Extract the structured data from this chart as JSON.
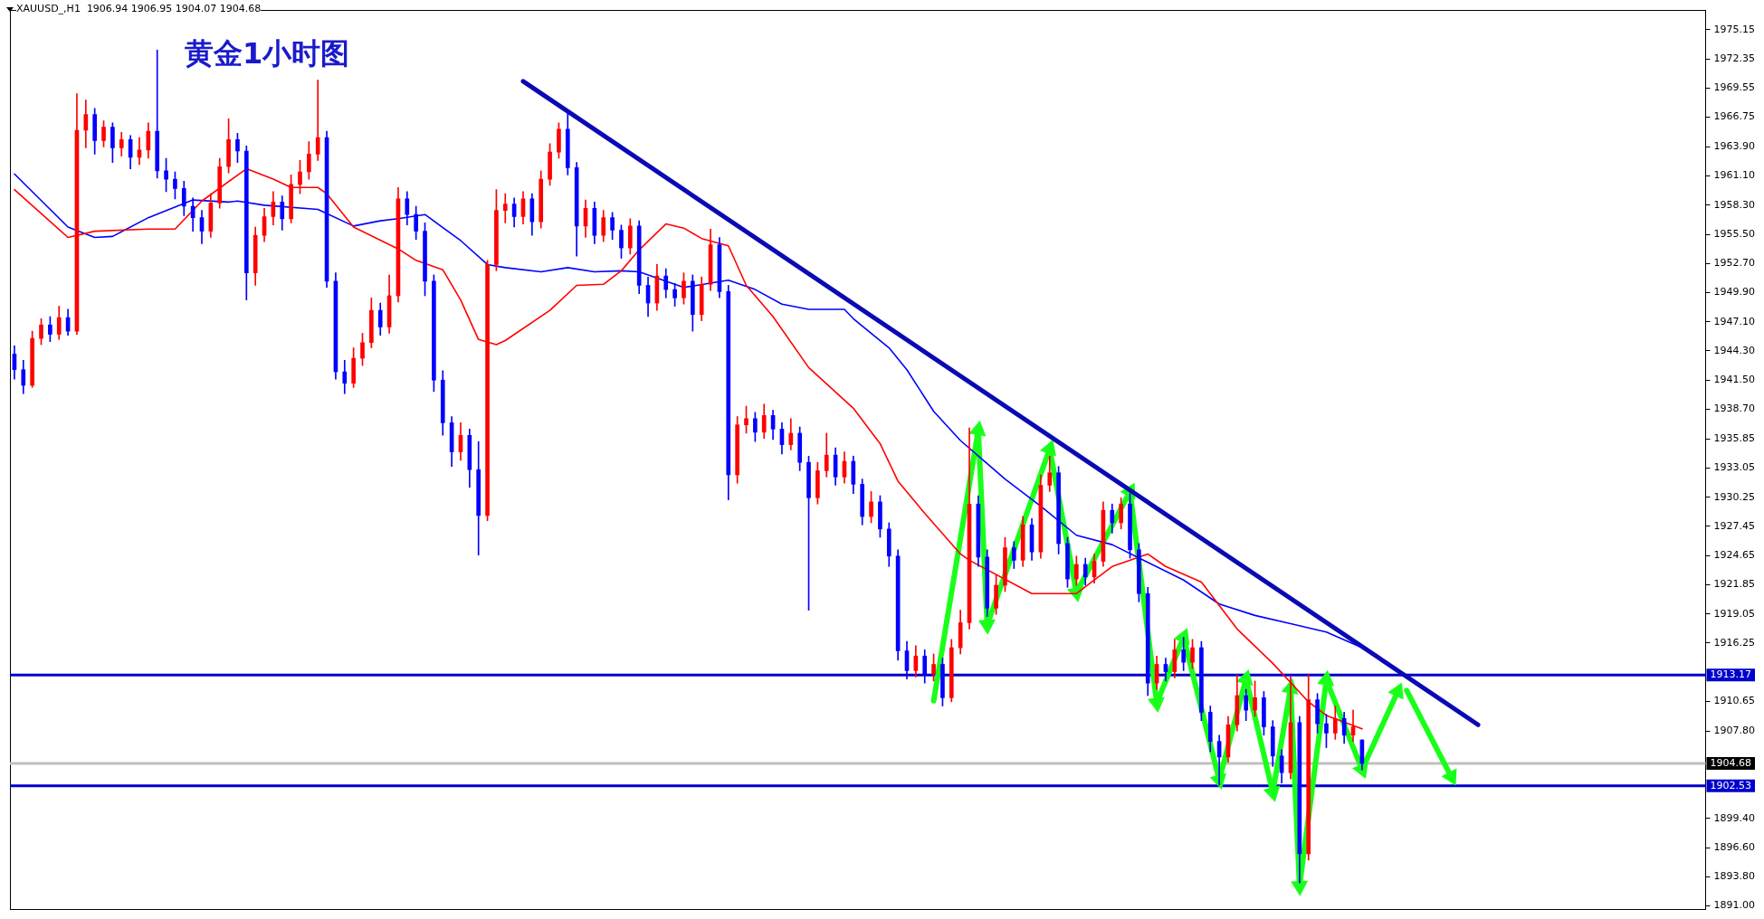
{
  "chart_data": {
    "type": "candlestick",
    "title": "黄金1小时图",
    "annotations": [
      "XAUUSD_,H1  1906.94 1906.95 1904.07 1904.68"
    ],
    "categories": [
      null,
      null,
      null,
      null,
      null,
      null,
      null,
      null,
      null,
      null,
      null,
      null,
      null,
      null,
      null,
      null,
      null,
      null,
      null,
      null,
      null,
      null,
      null,
      null,
      null,
      null,
      null,
      null,
      null,
      null,
      null,
      null,
      null,
      null,
      null,
      null,
      null,
      null,
      null,
      null,
      null,
      null,
      null,
      null,
      null,
      null,
      null,
      null,
      null,
      null,
      null,
      null,
      null,
      null,
      null,
      null,
      null,
      null,
      null,
      null,
      null,
      null,
      null,
      null,
      null,
      null,
      null,
      null,
      null,
      null,
      null,
      null,
      null,
      null,
      null,
      null,
      null,
      null,
      null,
      null,
      null,
      null,
      null,
      null,
      null,
      null,
      null,
      null,
      null,
      null,
      null,
      null,
      null,
      null,
      null,
      null,
      null,
      null,
      null,
      null,
      null,
      null,
      null,
      null,
      null,
      null,
      null,
      null,
      null,
      null,
      null,
      null,
      null,
      null,
      null,
      null,
      null,
      null,
      null,
      null,
      null,
      null,
      null,
      null,
      null,
      null,
      null,
      null,
      null,
      null,
      null,
      null,
      null,
      null,
      null,
      null,
      null,
      null,
      null,
      null,
      null,
      null,
      null,
      null,
      null,
      null,
      null,
      null,
      null,
      null,
      null,
      null,
      null,
      null,
      null,
      null,
      null,
      null,
      null,
      null,
      null,
      null,
      null,
      null,
      null,
      null,
      null,
      null,
      null,
      null,
      null,
      null,
      null,
      null,
      null,
      null,
      null,
      null,
      null,
      null,
      null,
      null,
      null,
      null,
      null,
      null,
      null,
      null,
      null,
      null
    ],
    "ylim": [
      1890.7,
      1977.05
    ],
    "tick_labels": "y",
    "yticks": [
      1975.15,
      1972.35,
      1969.55,
      1966.75,
      {
        "value": 1963.9,
        "label": "1963.90"
      },
      {
        "value": 1961.1,
        "label": "1961.10"
      },
      {
        "value": 1958.3,
        "label": "1958.30"
      },
      {
        "value": 1955.5,
        "label": "1955.50"
      },
      {
        "value": 1952.7,
        "label": "1952.70"
      },
      {
        "value": 1949.9,
        "label": "1949.90"
      },
      {
        "value": 1947.1,
        "label": "1947.10"
      },
      {
        "value": 1944.3,
        "label": "1944.30"
      },
      {
        "value": 1941.5,
        "label": "1941.50"
      },
      {
        "value": 1938.7,
        "label": "1938.70"
      },
      1935.85,
      1933.05,
      1930.25,
      1927.45,
      1924.65,
      1921.85,
      1919.05,
      1916.25,
      1910.65,
      {
        "value": 1907.8,
        "label": "1907.80"
      },
      {
        "value": 1899.4,
        "label": "1899.40"
      },
      {
        "value": 1896.6,
        "label": "1896.60"
      },
      {
        "value": 1893.8,
        "label": "1893.80"
      },
      {
        "value": 1891,
        "label": "1891.00"
      }
    ],
    "ohlc": [
      [
        1944.0,
        1944.8,
        1941.6,
        1942.5
      ],
      [
        1942.5,
        1943.4,
        1940.2,
        1941.0
      ],
      [
        1941.0,
        1946.2,
        1940.8,
        1945.5
      ],
      [
        1945.5,
        1947.4,
        1944.9,
        1946.8
      ],
      [
        1946.8,
        1947.6,
        1945.2,
        1945.9
      ],
      [
        1945.9,
        1948.6,
        1945.4,
        1947.5
      ],
      [
        1947.5,
        1948.3,
        1945.8,
        1946.2
      ],
      [
        1946.2,
        1969.0,
        1945.9,
        1965.5
      ],
      [
        1965.5,
        1968.4,
        1963.8,
        1967.0
      ],
      [
        1967.0,
        1967.6,
        1963.2,
        1964.5
      ],
      [
        1964.5,
        1966.4,
        1963.9,
        1965.8
      ],
      [
        1965.8,
        1966.2,
        1962.4,
        1963.8
      ],
      [
        1963.8,
        1965.3,
        1963.0,
        1964.6
      ],
      [
        1964.6,
        1965.0,
        1961.8,
        1962.9
      ],
      [
        1962.9,
        1964.8,
        1962.2,
        1963.6
      ],
      [
        1963.6,
        1966.2,
        1962.8,
        1965.4
      ],
      [
        1965.4,
        1973.2,
        1960.9,
        1961.6
      ],
      [
        1961.6,
        1962.8,
        1959.6,
        1960.8
      ],
      [
        1960.8,
        1961.5,
        1958.9,
        1959.9
      ],
      [
        1959.9,
        1960.6,
        1957.3,
        1958.2
      ],
      [
        1958.2,
        1959.0,
        1955.8,
        1957.1
      ],
      [
        1957.1,
        1957.8,
        1954.6,
        1955.8
      ],
      [
        1955.8,
        1959.4,
        1955.2,
        1958.5
      ],
      [
        1958.5,
        1962.8,
        1958.0,
        1962.0
      ],
      [
        1962.0,
        1966.6,
        1961.4,
        1964.6
      ],
      [
        1964.6,
        1965.2,
        1962.4,
        1963.5
      ],
      [
        1963.5,
        1964.0,
        1949.2,
        1951.8
      ],
      [
        1951.8,
        1956.2,
        1950.6,
        1955.4
      ],
      [
        1955.4,
        1958.0,
        1954.8,
        1957.2
      ],
      [
        1957.2,
        1959.6,
        1956.4,
        1958.6
      ],
      [
        1958.6,
        1959.2,
        1955.9,
        1957.0
      ],
      [
        1957.0,
        1961.2,
        1956.6,
        1960.3
      ],
      [
        1960.3,
        1962.6,
        1959.4,
        1961.5
      ],
      [
        1961.5,
        1964.4,
        1960.8,
        1963.2
      ],
      [
        1963.2,
        1970.3,
        1962.6,
        1964.8
      ],
      [
        1964.8,
        1965.4,
        1950.4,
        1951.0
      ],
      [
        1951.0,
        1951.8,
        1941.6,
        1942.3
      ],
      [
        1942.3,
        1943.4,
        1940.2,
        1941.2
      ],
      [
        1941.2,
        1944.6,
        1940.8,
        1943.6
      ],
      [
        1943.6,
        1946.0,
        1942.9,
        1945.1
      ],
      [
        1945.1,
        1949.4,
        1944.6,
        1948.2
      ],
      [
        1948.2,
        1948.9,
        1945.8,
        1946.6
      ],
      [
        1946.6,
        1951.6,
        1946.0,
        1949.6
      ],
      [
        1949.6,
        1960.0,
        1949.0,
        1958.9
      ],
      [
        1958.9,
        1959.6,
        1956.4,
        1957.4
      ],
      [
        1957.4,
        1958.2,
        1955.0,
        1955.8
      ],
      [
        1955.8,
        1956.6,
        1949.6,
        1951.0
      ],
      [
        1951.0,
        1951.6,
        1940.4,
        1941.5
      ],
      [
        1941.5,
        1942.4,
        1936.2,
        1937.4
      ],
      [
        1937.4,
        1938.0,
        1933.2,
        1934.6
      ],
      [
        1934.6,
        1937.4,
        1933.8,
        1936.2
      ],
      [
        1936.2,
        1936.8,
        1931.2,
        1932.9
      ],
      [
        1932.9,
        1935.6,
        1924.7,
        1928.5
      ],
      [
        1928.5,
        1953.0,
        1928.0,
        1952.6
      ],
      [
        1952.6,
        1959.8,
        1952.0,
        1957.8
      ],
      [
        1957.8,
        1959.4,
        1956.6,
        1958.4
      ],
      [
        1958.4,
        1959.0,
        1956.2,
        1957.2
      ],
      [
        1957.2,
        1959.6,
        1956.5,
        1958.9
      ],
      [
        1958.9,
        1959.4,
        1955.4,
        1956.7
      ],
      [
        1956.7,
        1961.6,
        1956.1,
        1960.8
      ],
      [
        1960.8,
        1964.2,
        1960.2,
        1963.4
      ],
      [
        1963.4,
        1966.2,
        1962.8,
        1965.6
      ],
      [
        1965.6,
        1967.2,
        1961.2,
        1961.9
      ],
      [
        1961.9,
        1962.4,
        1953.4,
        1956.3
      ],
      [
        1956.3,
        1958.8,
        1955.2,
        1958.0
      ],
      [
        1958.0,
        1958.6,
        1954.6,
        1955.4
      ],
      [
        1955.4,
        1957.8,
        1954.8,
        1957.1
      ],
      [
        1957.1,
        1957.6,
        1955.0,
        1955.9
      ],
      [
        1955.9,
        1956.4,
        1953.2,
        1954.2
      ],
      [
        1954.2,
        1957.0,
        1953.6,
        1956.3
      ],
      [
        1956.3,
        1956.8,
        1949.8,
        1950.6
      ],
      [
        1950.6,
        1951.4,
        1947.6,
        1948.9
      ],
      [
        1948.9,
        1952.6,
        1948.2,
        1951.5
      ],
      [
        1951.5,
        1952.2,
        1949.4,
        1950.2
      ],
      [
        1950.2,
        1950.8,
        1948.6,
        1949.4
      ],
      [
        1949.4,
        1951.8,
        1948.8,
        1951.0
      ],
      [
        1951.0,
        1951.6,
        1946.2,
        1947.8
      ],
      [
        1947.8,
        1951.4,
        1947.2,
        1950.7
      ],
      [
        1950.7,
        1956.0,
        1950.1,
        1954.5
      ],
      [
        1954.5,
        1955.2,
        1949.4,
        1950.0
      ],
      [
        1950.0,
        1950.6,
        1930.0,
        1932.4
      ],
      [
        1932.4,
        1938.0,
        1931.6,
        1937.2
      ],
      [
        1937.2,
        1939.0,
        1936.4,
        1937.8
      ],
      [
        1937.8,
        1938.4,
        1935.6,
        1936.5
      ],
      [
        1936.5,
        1939.2,
        1935.9,
        1938.1
      ],
      [
        1938.1,
        1938.6,
        1935.8,
        1936.8
      ],
      [
        1936.8,
        1937.4,
        1934.4,
        1935.3
      ],
      [
        1935.3,
        1937.8,
        1934.8,
        1936.4
      ],
      [
        1936.4,
        1937.0,
        1932.8,
        1933.6
      ],
      [
        1933.6,
        1934.2,
        1919.4,
        1930.2
      ],
      [
        1930.2,
        1933.6,
        1929.6,
        1932.8
      ],
      [
        1932.8,
        1936.4,
        1932.2,
        1934.3
      ],
      [
        1934.3,
        1935.0,
        1931.4,
        1932.2
      ],
      [
        1932.2,
        1934.6,
        1931.6,
        1933.7
      ],
      [
        1933.7,
        1934.2,
        1930.6,
        1931.5
      ],
      [
        1931.5,
        1932.0,
        1927.6,
        1928.4
      ],
      [
        1928.4,
        1930.8,
        1927.8,
        1929.8
      ],
      [
        1929.8,
        1930.4,
        1926.4,
        1927.2
      ],
      [
        1927.2,
        1927.8,
        1923.6,
        1924.6
      ],
      [
        1924.6,
        1925.2,
        1914.6,
        1915.5
      ],
      [
        1915.5,
        1916.4,
        1912.8,
        1913.6
      ],
      [
        1913.6,
        1916.0,
        1913.0,
        1915.0
      ],
      [
        1915.0,
        1915.6,
        1912.4,
        1913.3
      ],
      [
        1913.3,
        1915.2,
        1912.6,
        1914.2
      ],
      [
        1914.2,
        1914.8,
        1910.2,
        1911.0
      ],
      [
        1911.0,
        1916.6,
        1910.6,
        1915.8
      ],
      [
        1915.8,
        1919.4,
        1915.2,
        1918.2
      ],
      [
        1918.2,
        1936.9,
        1917.6,
        1929.6
      ],
      [
        1929.6,
        1930.4,
        1923.6,
        1924.5
      ],
      [
        1924.5,
        1925.2,
        1918.8,
        1919.6
      ],
      [
        1919.6,
        1922.8,
        1919.0,
        1921.8
      ],
      [
        1921.8,
        1926.4,
        1921.2,
        1925.4
      ],
      [
        1925.4,
        1926.0,
        1923.4,
        1924.2
      ],
      [
        1924.2,
        1928.4,
        1923.6,
        1927.6
      ],
      [
        1927.6,
        1928.2,
        1924.2,
        1925.0
      ],
      [
        1925.0,
        1932.4,
        1924.4,
        1931.4
      ],
      [
        1931.4,
        1934.2,
        1930.8,
        1932.6
      ],
      [
        1932.6,
        1933.2,
        1924.8,
        1925.8
      ],
      [
        1925.8,
        1926.4,
        1921.6,
        1922.4
      ],
      [
        1922.4,
        1924.6,
        1921.8,
        1923.8
      ],
      [
        1923.8,
        1924.4,
        1921.8,
        1922.6
      ],
      [
        1922.6,
        1924.8,
        1922.0,
        1924.1
      ],
      [
        1924.1,
        1929.8,
        1923.6,
        1929.0
      ],
      [
        1929.0,
        1929.6,
        1926.8,
        1927.8
      ],
      [
        1927.8,
        1930.2,
        1927.2,
        1929.6
      ],
      [
        1929.6,
        1930.6,
        1924.4,
        1925.2
      ],
      [
        1925.2,
        1925.8,
        1920.2,
        1921.0
      ],
      [
        1921.0,
        1921.6,
        1911.2,
        1912.4
      ],
      [
        1912.4,
        1915.0,
        1911.8,
        1914.2
      ],
      [
        1914.2,
        1914.8,
        1912.6,
        1913.5
      ],
      [
        1913.5,
        1916.6,
        1912.9,
        1915.6
      ],
      [
        1915.6,
        1916.8,
        1913.6,
        1914.4
      ],
      [
        1914.4,
        1916.6,
        1913.8,
        1915.8
      ],
      [
        1915.8,
        1916.4,
        1908.8,
        1909.6
      ],
      [
        1909.6,
        1910.2,
        1905.8,
        1906.8
      ],
      [
        1906.8,
        1907.4,
        1902.6,
        1905.3
      ],
      [
        1905.3,
        1909.2,
        1904.8,
        1908.4
      ],
      [
        1908.4,
        1913.2,
        1907.8,
        1911.2
      ],
      [
        1911.2,
        1911.8,
        1908.8,
        1909.8
      ],
      [
        1909.8,
        1912.6,
        1909.2,
        1911.0
      ],
      [
        1911.0,
        1911.6,
        1907.4,
        1908.2
      ],
      [
        1908.2,
        1908.8,
        1904.4,
        1905.4
      ],
      [
        1905.4,
        1906.0,
        1902.8,
        1903.8
      ],
      [
        1903.8,
        1913.0,
        1903.2,
        1908.6
      ],
      [
        1908.6,
        1909.2,
        1893.2,
        1896.0
      ],
      [
        1896.0,
        1913.2,
        1895.4,
        1910.8
      ],
      [
        1910.8,
        1911.4,
        1907.6,
        1908.5
      ],
      [
        1908.5,
        1909.4,
        1906.2,
        1907.6
      ],
      [
        1907.6,
        1910.2,
        1907.0,
        1909.0
      ],
      [
        1909.0,
        1909.6,
        1906.6,
        1907.4
      ],
      [
        1907.4,
        1909.8,
        1906.8,
        1908.2
      ],
      [
        1906.94,
        1906.95,
        1904.07,
        1904.68
      ],
      null,
      null,
      null,
      null,
      null,
      null,
      null,
      null,
      null,
      null,
      null,
      null,
      null,
      null,
      null,
      null,
      null,
      null,
      null,
      null,
      null,
      null,
      null,
      null,
      null,
      null,
      null,
      null,
      null,
      null,
      null,
      null,
      null,
      null,
      null,
      null,
      null,
      null
    ],
    "colors": [
      "#0000ff",
      "#0000ff",
      "#ff0000",
      "#ff0000",
      "#0000ff",
      "#ff0000",
      "#0000ff",
      "#ff0000",
      "#ff0000",
      "#0000ff",
      "#ff0000",
      "#0000ff",
      "#ff0000",
      "#0000ff",
      "#ff0000",
      "#ff0000",
      "#0000ff",
      "#0000ff",
      "#0000ff",
      "#0000ff",
      "#0000ff",
      "#0000ff",
      "#ff0000",
      "#ff0000",
      "#ff0000",
      "#0000ff",
      "#0000ff",
      "#ff0000",
      "#ff0000",
      "#ff0000",
      "#0000ff",
      "#ff0000",
      "#ff0000",
      "#ff0000",
      "#ff0000",
      "#0000ff",
      "#0000ff",
      "#0000ff",
      "#ff0000",
      "#ff0000",
      "#ff0000",
      "#0000ff",
      "#ff0000",
      "#ff0000",
      "#0000ff",
      "#0000ff",
      "#0000ff",
      "#0000ff",
      "#0000ff",
      "#0000ff",
      "#ff0000",
      "#0000ff",
      "#0000ff",
      "#ff0000",
      "#ff0000",
      "#ff0000",
      "#0000ff",
      "#ff0000",
      "#0000ff",
      "#ff0000",
      "#ff0000",
      "#ff0000",
      "#0000ff",
      "#0000ff",
      "#ff0000",
      "#0000ff",
      "#ff0000",
      "#0000ff",
      "#0000ff",
      "#ff0000",
      "#0000ff",
      "#0000ff",
      "#ff0000",
      "#0000ff",
      "#0000ff",
      "#ff0000",
      "#0000ff",
      "#ff0000",
      "#ff0000",
      "#0000ff",
      "#0000ff",
      "#ff0000",
      "#ff0000",
      "#0000ff",
      "#ff0000",
      "#0000ff",
      "#0000ff",
      "#ff0000",
      "#0000ff",
      "#0000ff",
      "#ff0000",
      "#ff0000",
      "#0000ff",
      "#ff0000",
      "#0000ff",
      "#0000ff",
      "#ff0000",
      "#0000ff",
      "#0000ff",
      "#0000ff",
      "#0000ff",
      "#ff0000",
      "#0000ff",
      "#ff0000",
      "#0000ff",
      "#ff0000",
      "#ff0000",
      "#ff0000",
      "#0000ff",
      "#0000ff",
      "#ff0000",
      "#ff0000",
      "#0000ff",
      "#ff0000",
      "#0000ff",
      "#ff0000",
      "#ff0000",
      "#0000ff",
      "#0000ff",
      "#ff0000",
      "#0000ff",
      "#ff0000",
      "#ff0000",
      "#0000ff",
      "#ff0000",
      "#0000ff",
      "#0000ff",
      "#0000ff",
      "#ff0000",
      "#0000ff",
      "#ff0000",
      "#0000ff",
      "#ff0000",
      "#0000ff",
      "#0000ff",
      "#0000ff",
      "#ff0000",
      "#ff0000",
      "#0000ff",
      "#ff0000",
      "#0000ff",
      "#0000ff",
      "#0000ff",
      "#ff0000",
      "#0000ff",
      "#ff0000",
      "#0000ff",
      "#0000ff",
      "#ff0000",
      "#0000ff",
      "#ff0000",
      "#0000ff",
      null,
      null,
      null,
      null,
      null,
      null,
      null,
      null,
      null,
      null,
      null,
      null,
      null,
      null,
      null,
      null,
      null,
      null,
      null,
      null,
      null,
      null,
      null,
      null,
      null,
      null,
      null,
      null,
      null,
      null,
      null,
      null,
      null,
      null,
      null,
      null,
      null,
      null
    ],
    "series": [
      {
        "type": "line",
        "color": "#ff0000",
        "values": [
          1959.8,
          null,
          null,
          null,
          null,
          null,
          1955.2,
          null,
          null,
          1955.8,
          null,
          null,
          null,
          null,
          null,
          1956.0,
          null,
          null,
          1956.0,
          null,
          null,
          1958.7,
          null,
          null,
          null,
          null,
          1961.8,
          null,
          null,
          1960.8,
          null,
          1960.0,
          null,
          null,
          1960.0,
          1959.4,
          null,
          null,
          1956.2,
          null,
          null,
          null,
          null,
          1954.1,
          null,
          1953.0,
          null,
          null,
          1952.1,
          null,
          1949.2,
          null,
          1945.4,
          null,
          1944.9,
          1945.3,
          null,
          null,
          null,
          null,
          1948.2,
          null,
          null,
          1950.6,
          null,
          null,
          1950.7,
          null,
          1952.0,
          null,
          1954.0,
          null,
          null,
          1956.5,
          null,
          1956.1,
          null,
          1955.1,
          null,
          null,
          1954.4,
          null,
          1950.6,
          null,
          null,
          1947.6,
          null,
          null,
          null,
          1942.7,
          null,
          null,
          null,
          null,
          1938.8,
          null,
          null,
          1935.4,
          null,
          1931.8,
          null,
          null,
          1928.7,
          null,
          null,
          null,
          1924.8,
          1924.2,
          null,
          null,
          null,
          null,
          null,
          null,
          1921.0,
          null,
          null,
          null,
          null,
          1921.0,
          null,
          null,
          null,
          1923.6,
          null,
          null,
          null,
          1924.8,
          null,
          1923.6,
          null,
          null,
          null,
          1922.1,
          null,
          null,
          null,
          1917.6,
          null,
          null,
          null,
          1914.3,
          null,
          null,
          null,
          1910.6,
          null,
          1909.3,
          null,
          null,
          null,
          1908.0,
          null,
          null,
          null,
          null,
          null,
          null,
          null,
          null,
          null,
          null,
          null,
          null,
          null,
          null,
          null,
          null,
          null,
          null,
          null,
          null,
          null,
          null,
          null,
          null,
          null,
          null,
          null,
          null,
          null,
          null,
          null,
          null,
          null,
          null,
          null,
          null,
          null,
          null
        ]
      },
      {
        "type": "line",
        "color": "#0000ff",
        "values": [
          1961.3,
          null,
          null,
          null,
          null,
          null,
          1956.2,
          null,
          null,
          1955.2,
          null,
          1955.3,
          null,
          null,
          null,
          1957.1,
          null,
          null,
          null,
          null,
          1958.8,
          null,
          null,
          null,
          1958.6,
          1958.7,
          null,
          null,
          1958.3,
          null,
          null,
          null,
          null,
          null,
          1957.9,
          null,
          null,
          null,
          1956.3,
          null,
          null,
          1956.8,
          null,
          1957.0,
          null,
          null,
          1957.4,
          null,
          null,
          null,
          1954.9,
          null,
          null,
          1952.6,
          null,
          1952.3,
          null,
          null,
          null,
          1951.9,
          null,
          null,
          1952.3,
          null,
          null,
          1951.9,
          null,
          null,
          1952.0,
          null,
          1951.9,
          null,
          null,
          null,
          null,
          1950.4,
          null,
          null,
          null,
          null,
          1951.1,
          null,
          null,
          1950.2,
          null,
          null,
          1948.8,
          null,
          null,
          1948.3,
          null,
          null,
          null,
          1948.3,
          1947.4,
          null,
          null,
          null,
          1944.6,
          null,
          1942.5,
          null,
          null,
          1938.5,
          null,
          null,
          1935.7,
          null,
          null,
          null,
          null,
          1932.0,
          null,
          null,
          null,
          1929.4,
          null,
          null,
          null,
          1926.6,
          null,
          null,
          null,
          1925.7,
          null,
          null,
          null,
          1924.0,
          null,
          null,
          null,
          1922.3,
          null,
          null,
          null,
          1920.0,
          null,
          null,
          null,
          1918.9,
          null,
          null,
          null,
          1918.1,
          null,
          null,
          null,
          1917.3,
          null,
          null,
          null,
          1915.8,
          null,
          null,
          null,
          null,
          null,
          null,
          null,
          null,
          null,
          null,
          null,
          null,
          null,
          null,
          null,
          null,
          null,
          null,
          null,
          null,
          null,
          null,
          null,
          null,
          null,
          null,
          null,
          null,
          null,
          null,
          null,
          null,
          null,
          null,
          null,
          null,
          null,
          null
        ]
      },
      {
        "type": "line",
        "color": "#0a0ab4",
        "values": [
          null,
          null,
          null,
          null,
          null,
          null,
          null,
          null,
          null,
          null,
          null,
          null,
          null,
          null,
          null,
          null,
          null,
          null,
          null,
          null,
          null,
          null,
          null,
          null,
          null,
          null,
          null,
          null,
          null,
          null,
          null,
          null,
          null,
          null,
          null,
          null,
          null,
          null,
          null,
          null,
          null,
          null,
          null,
          null,
          null,
          null,
          null,
          null,
          null,
          null,
          null,
          null,
          null,
          null,
          null,
          null,
          null,
          1970.2,
          null,
          null,
          null,
          null,
          null,
          null,
          null,
          null,
          null,
          null,
          null,
          null,
          null,
          null,
          null,
          null,
          null,
          null,
          null,
          null,
          null,
          null,
          null,
          null,
          null,
          null,
          null,
          null,
          null,
          null,
          null,
          null,
          null,
          null,
          null,
          null,
          null,
          null,
          null,
          null,
          null,
          null,
          null,
          null,
          null,
          null,
          null,
          null,
          null,
          null,
          null,
          null,
          null,
          null,
          null,
          null,
          null,
          null,
          null,
          null,
          null,
          null,
          null,
          null,
          null,
          null,
          null,
          null,
          null,
          null,
          null,
          null,
          null,
          null,
          null,
          null,
          null,
          null,
          null,
          null,
          null,
          null,
          null,
          null,
          null,
          null,
          null,
          null,
          null,
          null,
          null,
          null,
          null,
          null,
          null,
          null,
          null,
          null,
          null,
          null,
          null,
          null,
          null,
          null,
          null,
          null,
          1908.4,
          null,
          null,
          null,
          null,
          null,
          null,
          null,
          null,
          null,
          null,
          null,
          null,
          null,
          null,
          null,
          null,
          null,
          null,
          null,
          null,
          null,
          null,
          null,
          null,
          null
        ]
      },
      {
        "type": "line",
        "marker": "triangle",
        "color": "#1aff1a",
        "values": [
          null,
          null,
          null,
          null,
          null,
          null,
          null,
          null,
          null,
          null,
          null,
          null,
          null,
          null,
          null,
          null,
          null,
          null,
          null,
          null,
          null,
          null,
          null,
          null,
          null,
          null,
          null,
          null,
          null,
          null,
          null,
          null,
          null,
          null,
          null,
          null,
          null,
          null,
          null,
          null,
          null,
          null,
          null,
          null,
          null,
          null,
          null,
          null,
          null,
          null,
          null,
          null,
          null,
          null,
          null,
          null,
          null,
          null,
          null,
          null,
          null,
          null,
          null,
          null,
          null,
          null,
          null,
          null,
          null,
          null,
          null,
          null,
          null,
          null,
          null,
          null,
          null,
          null,
          null,
          null,
          null,
          null,
          null,
          null,
          null,
          null,
          null,
          null,
          null,
          null,
          null,
          null,
          null,
          null,
          null,
          null,
          null,
          null,
          null,
          null,
          null,
          null,
          null,
          1910.7,
          null,
          null,
          null,
          null,
          1936.7,
          1918.0,
          null,
          null,
          null,
          null,
          null,
          null,
          1934.9,
          null,
          null,
          1921.1,
          null,
          null,
          null,
          null,
          null,
          1930.8,
          null,
          null,
          1910.5,
          null,
          null,
          1916.8,
          null,
          null,
          null,
          1903.1,
          null,
          null,
          1912.8,
          null,
          null,
          1901.9,
          null,
          1911.9,
          1892.9,
          null,
          null,
          1912.7,
          null,
          null,
          null,
          1904.1,
          null,
          null,
          null,
          1911.6,
          null,
          null,
          null,
          null,
          null,
          null,
          null,
          null,
          null,
          null,
          null,
          null,
          null,
          null,
          null,
          null,
          null,
          null,
          null,
          null,
          null,
          null,
          null,
          null,
          null,
          null,
          null,
          null,
          null,
          null,
          null,
          null,
          null,
          null
        ]
      },
      {
        "type": "line",
        "marker": "triangle",
        "color": "#1aff1a",
        "values": [
          null,
          null,
          null,
          null,
          null,
          null,
          null,
          null,
          null,
          null,
          null,
          null,
          null,
          null,
          null,
          null,
          null,
          null,
          null,
          null,
          null,
          null,
          null,
          null,
          null,
          null,
          null,
          null,
          null,
          null,
          null,
          null,
          null,
          null,
          null,
          null,
          null,
          null,
          null,
          null,
          null,
          null,
          null,
          null,
          null,
          null,
          null,
          null,
          null,
          null,
          null,
          null,
          null,
          null,
          null,
          null,
          null,
          null,
          null,
          null,
          null,
          null,
          null,
          null,
          null,
          null,
          null,
          null,
          null,
          null,
          null,
          null,
          null,
          null,
          null,
          null,
          null,
          null,
          null,
          null,
          null,
          null,
          null,
          null,
          null,
          null,
          null,
          null,
          null,
          null,
          null,
          null,
          null,
          null,
          null,
          null,
          null,
          null,
          null,
          null,
          null,
          null,
          null,
          null,
          null,
          null,
          null,
          null,
          null,
          null,
          null,
          null,
          null,
          null,
          null,
          null,
          null,
          null,
          null,
          null,
          null,
          null,
          null,
          null,
          null,
          null,
          null,
          null,
          null,
          null,
          null,
          null,
          null,
          null,
          null,
          null,
          null,
          null,
          null,
          null,
          null,
          null,
          null,
          null,
          null,
          null,
          null,
          null,
          null,
          null,
          null,
          null,
          null,
          null,
          null,
          null,
          1911.7,
          null,
          null,
          null,
          null,
          1903.4,
          null,
          null,
          null,
          null,
          null,
          null,
          null,
          null,
          null,
          null,
          null,
          null,
          null,
          null,
          null,
          null,
          null,
          null,
          null,
          null,
          null,
          null,
          null,
          null,
          null,
          null,
          null,
          null
        ]
      }
    ],
    "ref_lines": [
      {
        "axis": "y",
        "value": 1913.17,
        "label": "1913.17",
        "color": "#0000cc"
      },
      {
        "axis": "y",
        "value": 1902.53,
        "label": "1902.53",
        "color": "#0000cc"
      },
      {
        "axis": "y",
        "value": 1904.68,
        "label": "1904.68",
        "color": "#c0c0c0"
      }
    ]
  }
}
